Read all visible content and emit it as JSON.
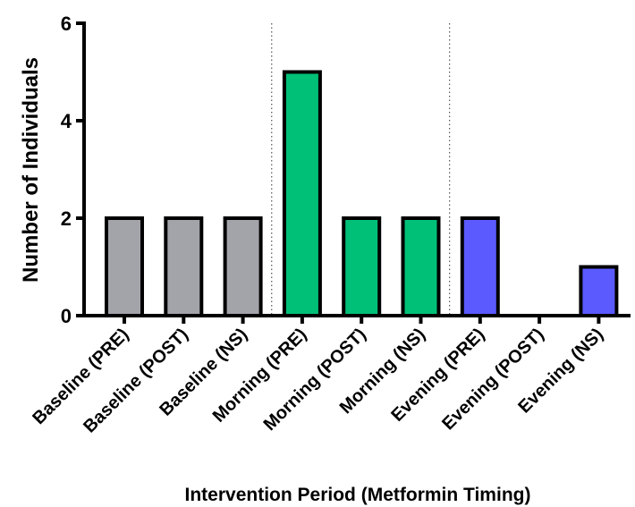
{
  "chart_data": {
    "type": "bar",
    "title": "",
    "xlabel": "Intervention Period (Metformin Timing)",
    "ylabel": "Number of Individuals",
    "ylim": [
      0,
      6
    ],
    "yticks": [
      0,
      2,
      4,
      6
    ],
    "grid": false,
    "categories": [
      "Baseline (PRE)",
      "Baseline (POST)",
      "Baseline (NS)",
      "Morning (PRE)",
      "Morning (POST)",
      "Morning (NS)",
      "Evening (PRE)",
      "Evening (POST)",
      "Evening (NS)"
    ],
    "values": [
      2,
      2,
      2,
      5,
      2,
      2,
      2,
      0,
      1
    ],
    "groups": [
      {
        "name": "Baseline",
        "color": "#a3a3aa",
        "count": 3
      },
      {
        "name": "Morning",
        "color": "#00c077",
        "count": 3
      },
      {
        "name": "Evening",
        "color": "#5a5aff",
        "count": 3
      }
    ],
    "separators": "dotted vertical lines between groups"
  }
}
